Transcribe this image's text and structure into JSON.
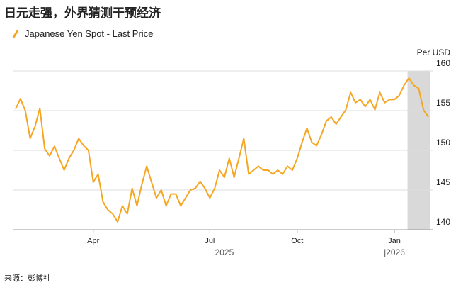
{
  "chart_data": {
    "type": "line",
    "title": "日元走强，外界猜测干预经济",
    "series": [
      {
        "name": "Japanese Yen Spot - Last Price",
        "color": "#f5a623",
        "values": [
          155.2,
          156.5,
          155,
          151.5,
          153,
          155.3,
          150.2,
          149.3,
          150.5,
          149,
          147.5,
          149,
          150,
          151.5,
          150.6,
          150,
          146,
          147,
          143.5,
          142.5,
          142,
          141,
          143,
          142,
          145.2,
          143,
          145.7,
          148,
          146,
          144,
          145,
          143,
          144.5,
          144.5,
          143,
          144,
          145,
          145.2,
          146.1,
          145.2,
          144,
          145.2,
          147.5,
          146.6,
          149,
          146.6,
          149,
          151.5,
          147,
          147.5,
          148,
          147.5,
          147.5,
          147,
          147.5,
          147,
          148,
          147.5,
          149,
          151,
          152.8,
          151,
          150.6,
          152,
          153.7,
          154.2,
          153.3,
          154.2,
          155.1,
          157.3,
          156,
          156.4,
          155.5,
          156.4,
          155.1,
          157.3,
          156,
          156.4,
          156.4,
          156.9,
          158.2,
          159.1,
          158.2,
          157.8,
          155.1,
          154.2
        ]
      }
    ],
    "xticks": [
      {
        "value": 16,
        "label": "Apr"
      },
      {
        "value": 40,
        "label": "Jul"
      },
      {
        "value": 58,
        "label": "Oct"
      },
      {
        "value": 78,
        "label": "Jan"
      }
    ],
    "year_labels": [
      {
        "value": 43,
        "label": "2025"
      },
      {
        "value": 78,
        "label": "|2026"
      }
    ],
    "xlim": [
      0,
      85
    ],
    "shaded_range": [
      81,
      85
    ],
    "ylim": [
      140,
      160
    ],
    "yticks": [
      140,
      145,
      150,
      155,
      160
    ],
    "y_unit": "Per USD",
    "grid": true,
    "source": "来源：彭博社"
  }
}
